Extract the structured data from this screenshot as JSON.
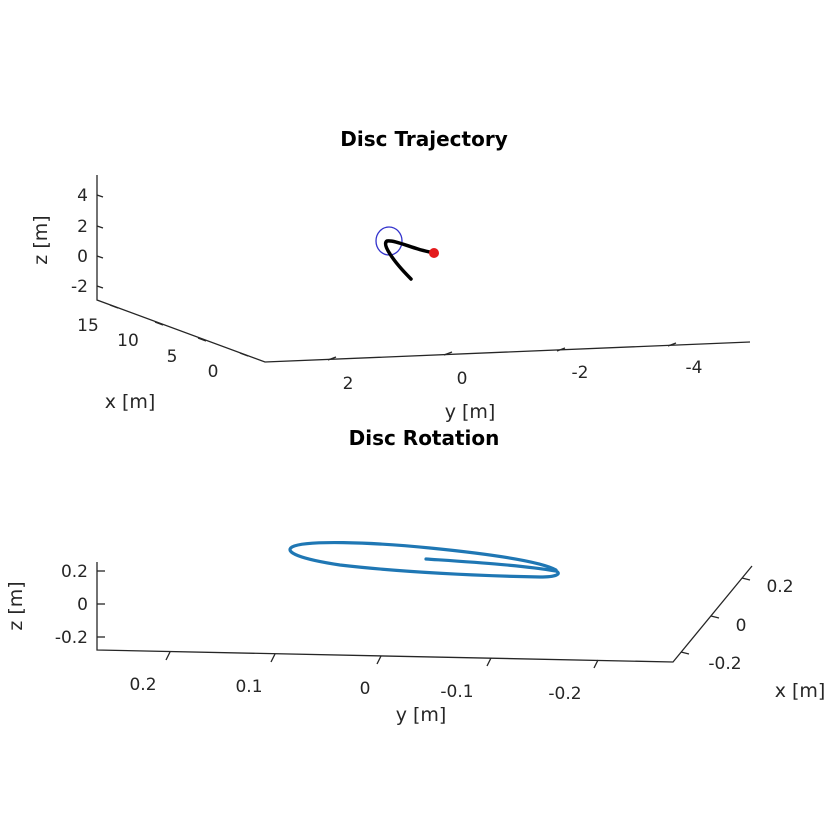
{
  "chart_data": [
    {
      "type": "line3d",
      "title": "Disc Trajectory",
      "xlabel": "x [m]",
      "ylabel": "y [m]",
      "zlabel": "z [m]",
      "x_ticks": [
        "15",
        "10",
        "5",
        "0"
      ],
      "y_ticks": [
        "2",
        "0",
        "-2",
        "-4"
      ],
      "z_ticks": [
        "4",
        "2",
        "0",
        "-2"
      ],
      "series": [
        {
          "role": "trajectory path",
          "color": "#000000"
        },
        {
          "role": "disc outline",
          "color": "#3333cc"
        },
        {
          "role": "start point",
          "color": "#e41a1c"
        }
      ]
    },
    {
      "type": "line3d",
      "title": "Disc Rotation",
      "xlabel": "x [m]",
      "ylabel": "y [m]",
      "zlabel": "z [m]",
      "x_ticks": [
        "0.2",
        "0",
        "-0.2"
      ],
      "y_ticks": [
        "0.2",
        "0.1",
        "0",
        "-0.1",
        "-0.2"
      ],
      "z_ticks": [
        "0.2",
        "0",
        "-0.2"
      ],
      "series": [
        {
          "role": "disc rim",
          "color": "#1f77b4"
        }
      ]
    }
  ]
}
